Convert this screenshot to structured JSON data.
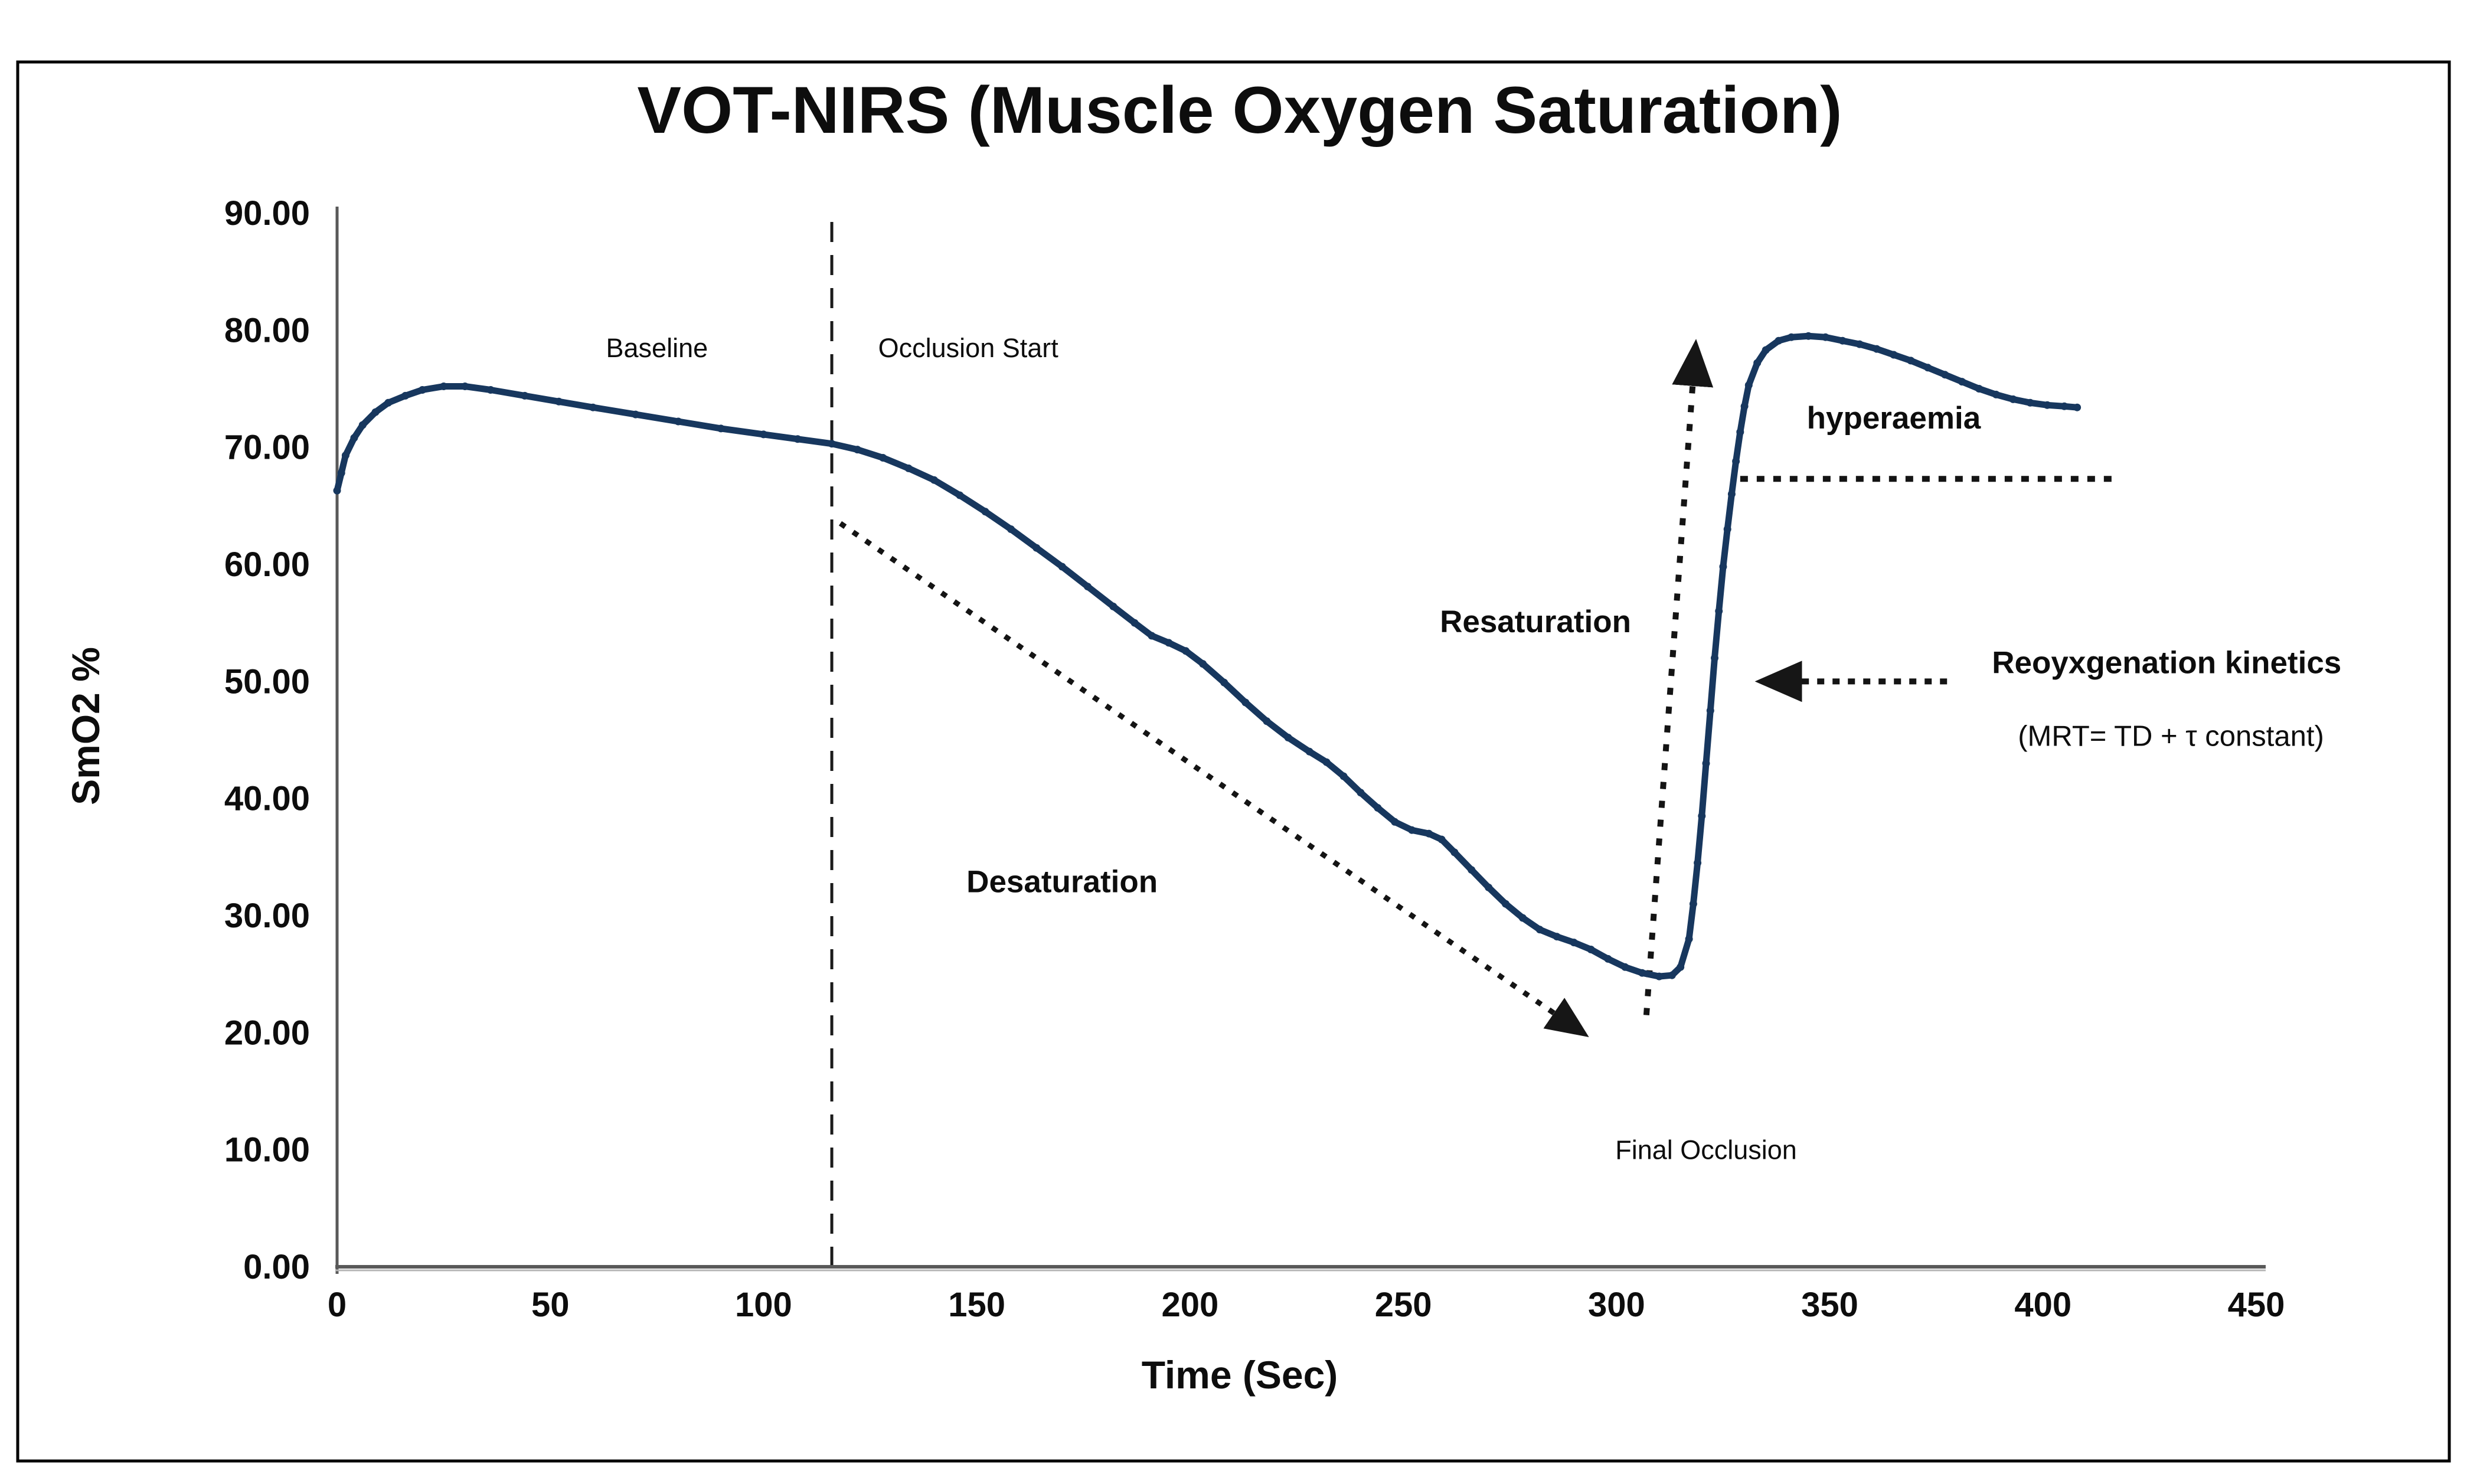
{
  "figure": {
    "background": "#ffffff",
    "border_color": "#000000"
  },
  "chart_data": {
    "type": "line",
    "title": "VOT-NIRS (Muscle Oxygen Saturation)",
    "xlabel": "Time (Sec)",
    "ylabel": "SmO2 %",
    "xlim": [
      0,
      450
    ],
    "ylim": [
      0,
      90
    ],
    "grid": false,
    "legend": "none",
    "line_color": "#17375e",
    "axis_color": "#595959",
    "x_ticks": [
      {
        "value": 0,
        "label": "0"
      },
      {
        "value": 50,
        "label": "50"
      },
      {
        "value": 100,
        "label": "100"
      },
      {
        "value": 150,
        "label": "150"
      },
      {
        "value": 200,
        "label": "200"
      },
      {
        "value": 250,
        "label": "250"
      },
      {
        "value": 300,
        "label": "300"
      },
      {
        "value": 350,
        "label": "350"
      },
      {
        "value": 400,
        "label": "400"
      },
      {
        "value": 450,
        "label": "450"
      }
    ],
    "y_ticks": [
      {
        "value": 90,
        "label": "90.00"
      },
      {
        "value": 80,
        "label": "80.00"
      },
      {
        "value": 70,
        "label": "70.00"
      },
      {
        "value": 60,
        "label": "60.00"
      },
      {
        "value": 50,
        "label": "50.00"
      },
      {
        "value": 40,
        "label": "40.00"
      },
      {
        "value": 30,
        "label": "30.00"
      },
      {
        "value": 20,
        "label": "20.00"
      },
      {
        "value": 10,
        "label": "10.00"
      },
      {
        "value": 0,
        "label": "0.00"
      }
    ],
    "series": [
      {
        "name": "SmO2",
        "points": [
          [
            0,
            66.3
          ],
          [
            1,
            67.8
          ],
          [
            2,
            69.3
          ],
          [
            4,
            70.8
          ],
          [
            6,
            71.9
          ],
          [
            9,
            73.0
          ],
          [
            12,
            73.8
          ],
          [
            16,
            74.4
          ],
          [
            20,
            74.9
          ],
          [
            25,
            75.2
          ],
          [
            30,
            75.2
          ],
          [
            36,
            74.9
          ],
          [
            44,
            74.4
          ],
          [
            52,
            73.9
          ],
          [
            60,
            73.4
          ],
          [
            70,
            72.8
          ],
          [
            80,
            72.2
          ],
          [
            90,
            71.6
          ],
          [
            100,
            71.1
          ],
          [
            108,
            70.7
          ],
          [
            116,
            70.3
          ],
          [
            122,
            69.8
          ],
          [
            128,
            69.1
          ],
          [
            134,
            68.2
          ],
          [
            140,
            67.2
          ],
          [
            146,
            65.9
          ],
          [
            152,
            64.5
          ],
          [
            158,
            63.0
          ],
          [
            164,
            61.4
          ],
          [
            170,
            59.8
          ],
          [
            176,
            58.1
          ],
          [
            182,
            56.4
          ],
          [
            187,
            55.0
          ],
          [
            191,
            53.9
          ],
          [
            195,
            53.3
          ],
          [
            199,
            52.6
          ],
          [
            203,
            51.5
          ],
          [
            208,
            49.9
          ],
          [
            213,
            48.2
          ],
          [
            218,
            46.6
          ],
          [
            223,
            45.2
          ],
          [
            228,
            44.0
          ],
          [
            232,
            43.1
          ],
          [
            236,
            41.9
          ],
          [
            240,
            40.5
          ],
          [
            244,
            39.2
          ],
          [
            248,
            38.0
          ],
          [
            252,
            37.3
          ],
          [
            256,
            37.0
          ],
          [
            259,
            36.5
          ],
          [
            262,
            35.4
          ],
          [
            266,
            33.9
          ],
          [
            270,
            32.4
          ],
          [
            274,
            31.0
          ],
          [
            278,
            29.8
          ],
          [
            282,
            28.8
          ],
          [
            286,
            28.2
          ],
          [
            290,
            27.7
          ],
          [
            294,
            27.1
          ],
          [
            298,
            26.3
          ],
          [
            302,
            25.6
          ],
          [
            306,
            25.1
          ],
          [
            310,
            24.8
          ],
          [
            313,
            24.9
          ],
          [
            315,
            25.6
          ],
          [
            317,
            28.0
          ],
          [
            318,
            31.0
          ],
          [
            319,
            34.5
          ],
          [
            320,
            38.5
          ],
          [
            321,
            43.0
          ],
          [
            322,
            47.5
          ],
          [
            323,
            52.0
          ],
          [
            324,
            56.0
          ],
          [
            325,
            59.8
          ],
          [
            326,
            63.0
          ],
          [
            327,
            66.0
          ],
          [
            328,
            68.8
          ],
          [
            329,
            71.3
          ],
          [
            330,
            73.5
          ],
          [
            331,
            75.3
          ],
          [
            333,
            77.2
          ],
          [
            335,
            78.3
          ],
          [
            338,
            79.1
          ],
          [
            341,
            79.4
          ],
          [
            345,
            79.5
          ],
          [
            349,
            79.4
          ],
          [
            353,
            79.1
          ],
          [
            357,
            78.8
          ],
          [
            361,
            78.4
          ],
          [
            365,
            77.9
          ],
          [
            369,
            77.4
          ],
          [
            373,
            76.8
          ],
          [
            377,
            76.2
          ],
          [
            381,
            75.6
          ],
          [
            385,
            75.0
          ],
          [
            389,
            74.5
          ],
          [
            393,
            74.1
          ],
          [
            397,
            73.8
          ],
          [
            401,
            73.6
          ],
          [
            405,
            73.5
          ],
          [
            408,
            73.4
          ]
        ]
      }
    ],
    "reference_lines": {
      "occlusion_line": {
        "t": 116,
        "v_from": 0,
        "v_to": 90,
        "pattern": "dash"
      },
      "hyperaemia_level": {
        "v": 67.3,
        "t_from": 329,
        "t_to": 418,
        "pattern": "dot"
      }
    },
    "arrows": {
      "desaturation": {
        "from": [
          118,
          63.5
        ],
        "to": [
          292,
          20
        ]
      },
      "resaturation": {
        "from": [
          307,
          21.5
        ],
        "to": [
          318.5,
          78.5
        ]
      },
      "reoxygenation": {
        "from": [
          377.5,
          50
        ],
        "to": [
          334.5,
          50
        ]
      }
    },
    "annotations": {
      "baseline": {
        "text": "Baseline",
        "t": 75,
        "v": 78.5
      },
      "occlusion_start": {
        "text": "Occlusion Start",
        "t": 148,
        "v": 78.5
      },
      "desaturation": {
        "text": "Desaturation",
        "t": 170,
        "v": 32.8
      },
      "final_occlusion": {
        "text": "Final Occlusion",
        "t": 321,
        "v": 10.0
      },
      "resaturation": {
        "text": "Resaturation",
        "t": 281,
        "v": 55.0
      },
      "hyperaemia": {
        "text": "hyperaemia",
        "t": 365,
        "v": 72.4
      },
      "reoxygenation_kinetics": {
        "text": "Reoyxgenation kinetics",
        "t": 429,
        "v": 51.5
      },
      "mrt_formula": {
        "text": "(MRT= TD + τ constant)",
        "t": 430,
        "v": 45.3
      }
    }
  }
}
